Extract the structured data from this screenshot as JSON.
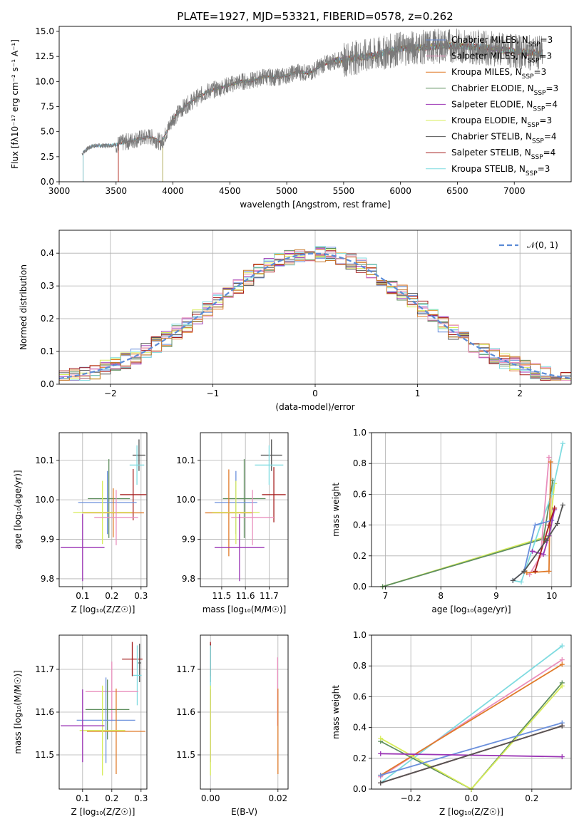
{
  "title": "PLATE=1927, MJD=53321, FIBERID=0578, z=0.262",
  "colors": [
    "#6a8fdc",
    "#e07b2a",
    "#5f8f5f",
    "#9b35b5",
    "#d7ec5a",
    "#555555",
    "#a51d1d",
    "#7fdbe0",
    "#e98fbd",
    "#c77a2f"
  ],
  "chart_data": [
    {
      "id": "spectrum",
      "type": "line",
      "title": "PLATE=1927, MJD=53321, FIBERID=0578, z=0.262",
      "xlabel": "wavelength [Angstrom, rest frame]",
      "ylabel": "Flux [fλ10⁻¹⁷ erg cm⁻² s⁻¹ A⁻¹]",
      "xlim": [
        3000,
        7500
      ],
      "ylim": [
        0,
        15.5
      ],
      "xticks": [
        "3000",
        "3500",
        "4000",
        "4500",
        "5000",
        "5500",
        "6000",
        "6500",
        "7000"
      ],
      "yticks": [
        "0.0",
        "2.5",
        "5.0",
        "7.5",
        "10.0",
        "12.5",
        "15.0"
      ],
      "legend_position": "top-right",
      "data_range": [
        3200,
        7250
      ],
      "continuum": {
        "x": [
          3200,
          3250,
          3300,
          3400,
          3500,
          3600,
          3700,
          3800,
          3900,
          3950,
          4000,
          4100,
          4200,
          4300,
          4400,
          4500,
          4600,
          4700,
          4800,
          4900,
          5000,
          5100,
          5200,
          5300,
          5400,
          5500,
          5600,
          5700,
          5800,
          5900,
          6000,
          6200,
          6400,
          6600,
          6800,
          7000,
          7250
        ],
        "y": [
          2.8,
          3.3,
          3.6,
          3.6,
          3.7,
          4.0,
          4.3,
          4.5,
          3.9,
          5.1,
          6.3,
          7.5,
          8.3,
          9.0,
          9.3,
          9.7,
          10.0,
          10.1,
          10.5,
          10.4,
          10.6,
          11.0,
          10.8,
          11.6,
          12.0,
          12.2,
          12.4,
          12.5,
          12.7,
          13.0,
          13.3,
          13.4,
          13.6,
          13.5,
          13.3,
          13.0,
          12.8
        ]
      },
      "series": [
        {
          "name": "Chabrier MILES, N_SSP=3",
          "color": "#6a8fdc",
          "start": 3210
        },
        {
          "name": "Salpeter MILES, N_SSP=3",
          "color": "#e98fbd",
          "start": 3520
        },
        {
          "name": "Kroupa MILES, N_SSP=3",
          "color": "#e07b2a",
          "start": 3520
        },
        {
          "name": "Chabrier ELODIE, N_SSP=3",
          "color": "#5f8f5f",
          "start": 3910
        },
        {
          "name": "Salpeter ELODIE, N_SSP=4",
          "color": "#9b35b5",
          "start": 3910
        },
        {
          "name": "Kroupa ELODIE, N_SSP=3",
          "color": "#d7ec5a",
          "start": 3910
        },
        {
          "name": "Chabrier STELIB, N_SSP=4",
          "color": "#555555",
          "start": 3210
        },
        {
          "name": "Salpeter STELIB, N_SSP=4",
          "color": "#a51d1d",
          "start": 3520
        },
        {
          "name": "Kroupa STELIB, N_SSP=3",
          "color": "#7fdbe0",
          "start": 3210
        }
      ]
    },
    {
      "id": "residuals",
      "type": "histogram",
      "xlabel": "(data-model)/error",
      "ylabel": "Normed distribution",
      "xlim": [
        -2.5,
        2.5
      ],
      "ylim": [
        0,
        0.47
      ],
      "xticks": [
        "−2",
        "−1",
        "0",
        "1",
        "2"
      ],
      "xtick_values": [
        -2,
        -1,
        0,
        1,
        2
      ],
      "yticks": [
        "0.0",
        "0.1",
        "0.2",
        "0.3",
        "0.4"
      ],
      "ytick_values": [
        0,
        0.1,
        0.2,
        0.3,
        0.4
      ],
      "bin_edges": [
        -2.5,
        -2.4,
        -2.3,
        -2.2,
        -2.1,
        -2.0,
        -1.9,
        -1.8,
        -1.7,
        -1.6,
        -1.5,
        -1.4,
        -1.3,
        -1.2,
        -1.1,
        -1.0,
        -0.9,
        -0.8,
        -0.7,
        -0.6,
        -0.5,
        -0.4,
        -0.3,
        -0.2,
        -0.1,
        0.0,
        0.1,
        0.2,
        0.3,
        0.4,
        0.5,
        0.6,
        0.7,
        0.8,
        0.9,
        1.0,
        1.1,
        1.2,
        1.3,
        1.4,
        1.5,
        1.6,
        1.7,
        1.8,
        1.9,
        2.0,
        2.1,
        2.2,
        2.3,
        2.4,
        2.5
      ],
      "gaussian_label": "𝒩(0, 1)",
      "legend_position": "top-right",
      "grid": true
    },
    {
      "id": "age-vs-Z",
      "type": "errorbar",
      "xlabel": "Z [log₁₀(Z/Z☉)]",
      "ylabel": "age  [log₁₀(age/yr)]",
      "xlim": [
        0.02,
        0.32
      ],
      "ylim": [
        9.78,
        10.17
      ],
      "xticks": [
        "0.1",
        "0.2",
        "0.3"
      ],
      "xtick_values": [
        0.1,
        0.2,
        0.3
      ],
      "yticks": [
        "9.8",
        "9.9",
        "10.0",
        "10.1"
      ],
      "ytick_values": [
        9.8,
        9.9,
        10.0,
        10.1
      ],
      "points": [
        {
          "x": 0.293,
          "xerr": 0.022,
          "y": 10.113,
          "yerr": 0.04,
          "color": "#555555"
        },
        {
          "x": 0.286,
          "xerr": 0.025,
          "y": 10.088,
          "yerr": 0.05,
          "color": "#7fdbe0"
        },
        {
          "x": 0.273,
          "xerr": 0.045,
          "y": 10.013,
          "yerr": 0.065,
          "color": "#a51d1d"
        },
        {
          "x": 0.19,
          "xerr": 0.072,
          "y": 10.003,
          "yerr": 0.1,
          "color": "#5f8f5f"
        },
        {
          "x": 0.185,
          "xerr": 0.1,
          "y": 9.993,
          "yerr": 0.08,
          "color": "#6a8fdc"
        },
        {
          "x": 0.205,
          "xerr": 0.105,
          "y": 9.967,
          "yerr": 0.062,
          "color": "#e07b2a"
        },
        {
          "x": 0.168,
          "xerr": 0.1,
          "y": 9.968,
          "yerr": 0.08,
          "color": "#d7ec5a"
        },
        {
          "x": 0.215,
          "xerr": 0.075,
          "y": 9.955,
          "yerr": 0.07,
          "color": "#e98fbd"
        },
        {
          "x": 0.1,
          "xerr": 0.075,
          "y": 9.879,
          "yerr": 0.085,
          "color": "#9b35b5"
        }
      ]
    },
    {
      "id": "age-vs-mass",
      "type": "errorbar",
      "xlabel": "mass [log₁₀(M/M☉)]",
      "ylabel": "",
      "xlim": [
        11.41,
        11.78
      ],
      "ylim": [
        9.78,
        10.17
      ],
      "xticks": [
        "11.5",
        "11.6",
        "11.7"
      ],
      "xtick_values": [
        11.5,
        11.6,
        11.7
      ],
      "yticks": [
        "9.8",
        "9.9",
        "10.0",
        "10.1"
      ],
      "ytick_values": [
        9.8,
        9.9,
        10.0,
        10.1
      ],
      "points": [
        {
          "x": 11.71,
          "xerr": 0.045,
          "y": 10.113,
          "yerr": 0.04,
          "color": "#555555"
        },
        {
          "x": 11.7,
          "xerr": 0.06,
          "y": 10.088,
          "yerr": 0.05,
          "color": "#7fdbe0"
        },
        {
          "x": 11.72,
          "xerr": 0.05,
          "y": 10.013,
          "yerr": 0.07,
          "color": "#a51d1d"
        },
        {
          "x": 11.595,
          "xerr": 0.09,
          "y": 10.003,
          "yerr": 0.1,
          "color": "#5f8f5f"
        },
        {
          "x": 11.56,
          "xerr": 0.09,
          "y": 9.993,
          "yerr": 0.08,
          "color": "#6a8fdc"
        },
        {
          "x": 11.53,
          "xerr": 0.1,
          "y": 9.967,
          "yerr": 0.11,
          "color": "#e07b2a"
        },
        {
          "x": 11.56,
          "xerr": 0.1,
          "y": 9.968,
          "yerr": 0.08,
          "color": "#d7ec5a"
        },
        {
          "x": 11.63,
          "xerr": 0.09,
          "y": 9.955,
          "yerr": 0.07,
          "color": "#e98fbd"
        },
        {
          "x": 11.575,
          "xerr": 0.105,
          "y": 9.879,
          "yerr": 0.085,
          "color": "#9b35b5"
        }
      ]
    },
    {
      "id": "weight-vs-age",
      "type": "line",
      "xlabel": "age  [log₁₀(age/yr)]",
      "ylabel": "mass weight",
      "xlim": [
        6.75,
        10.35
      ],
      "ylim": [
        0,
        1
      ],
      "xticks": [
        "7",
        "8",
        "9",
        "10"
      ],
      "xtick_values": [
        7,
        8,
        9,
        10
      ],
      "yticks": [
        "0.0",
        "0.2",
        "0.4",
        "0.6",
        "0.8",
        "1.0"
      ],
      "ytick_values": [
        0,
        0.2,
        0.4,
        0.6,
        0.8,
        1.0
      ],
      "series": [
        {
          "color": "#d7ec5a",
          "x": [
            6.95,
            9.95,
            10.05
          ],
          "y": [
            0.0,
            0.33,
            0.67
          ]
        },
        {
          "color": "#5f8f5f",
          "x": [
            6.95,
            9.85,
            10.02
          ],
          "y": [
            0.0,
            0.31,
            0.69
          ]
        },
        {
          "color": "#7fdbe0",
          "x": [
            9.3,
            9.45,
            9.8,
            10.0,
            10.2
          ],
          "y": [
            0.04,
            0.03,
            0.4,
            0.6,
            0.93
          ]
        },
        {
          "color": "#e98fbd",
          "x": [
            9.6,
            9.8,
            9.95
          ],
          "y": [
            0.08,
            0.2,
            0.84
          ]
        },
        {
          "color": "#e07b2a",
          "x": [
            9.55,
            9.95,
            9.98
          ],
          "y": [
            0.09,
            0.1,
            0.81
          ]
        },
        {
          "color": "#6a8fdc",
          "x": [
            9.3,
            9.5,
            9.7,
            10.0
          ],
          "y": [
            0.04,
            0.1,
            0.4,
            0.43
          ]
        },
        {
          "color": "#9b35b5",
          "x": [
            9.65,
            9.85,
            9.95,
            10.05
          ],
          "y": [
            0.23,
            0.21,
            0.33,
            0.5
          ]
        },
        {
          "color": "#a51d1d",
          "x": [
            9.7,
            9.95,
            10.05
          ],
          "y": [
            0.1,
            0.4,
            0.51
          ]
        },
        {
          "color": "#555555",
          "x": [
            9.3,
            9.5,
            9.9,
            10.1,
            10.2
          ],
          "y": [
            0.04,
            0.1,
            0.3,
            0.41,
            0.53
          ]
        }
      ]
    },
    {
      "id": "mass-vs-Z",
      "type": "errorbar",
      "xlabel": "Z [log₁₀(Z/Z☉)]",
      "ylabel": "mass [log₁₀(M/M☉)]",
      "xlim": [
        0.02,
        0.32
      ],
      "ylim": [
        11.42,
        11.78
      ],
      "xticks": [
        "0.1",
        "0.2",
        "0.3"
      ],
      "xtick_values": [
        0.1,
        0.2,
        0.3
      ],
      "yticks": [
        "11.5",
        "11.6",
        "11.7"
      ],
      "ytick_values": [
        11.5,
        11.6,
        11.7
      ],
      "points": [
        {
          "x": 0.295,
          "xerr": 0.005,
          "y": 11.715,
          "yerr": 0.045,
          "color": "#555555"
        },
        {
          "x": 0.27,
          "xerr": 0.035,
          "y": 11.724,
          "yerr": 0.04,
          "color": "#a51d1d"
        },
        {
          "x": 0.287,
          "xerr": 0.015,
          "y": 11.686,
          "yerr": 0.07,
          "color": "#7fdbe0"
        },
        {
          "x": 0.2,
          "xerr": 0.09,
          "y": 11.648,
          "yerr": 0.07,
          "color": "#e98fbd"
        },
        {
          "x": 0.185,
          "xerr": 0.075,
          "y": 11.606,
          "yerr": 0.07,
          "color": "#5f8f5f"
        },
        {
          "x": 0.18,
          "xerr": 0.1,
          "y": 11.581,
          "yerr": 0.1,
          "color": "#6a8fdc"
        },
        {
          "x": 0.215,
          "xerr": 0.1,
          "y": 11.555,
          "yerr": 0.1,
          "color": "#e07b2a"
        },
        {
          "x": 0.168,
          "xerr": 0.078,
          "y": 11.557,
          "yerr": 0.105,
          "color": "#d7ec5a"
        },
        {
          "x": 0.1,
          "xerr": 0.075,
          "y": 11.568,
          "yerr": 0.085,
          "color": "#9b35b5"
        }
      ]
    },
    {
      "id": "mass-vs-ebv",
      "type": "errorbar",
      "xlabel": "E(B-V)",
      "ylabel": "",
      "xlim": [
        -0.003,
        0.023
      ],
      "ylim": [
        11.42,
        11.78
      ],
      "xticks": [
        "0.00",
        "0.02"
      ],
      "xtick_values": [
        0,
        0.02
      ],
      "yticks": [
        "11.5",
        "11.6",
        "11.7"
      ],
      "ytick_values": [
        11.5,
        11.6,
        11.7
      ],
      "points": [
        {
          "x": 0.0,
          "xerr": 0,
          "y": 11.715,
          "yerr": 0.045,
          "color": "#555555"
        },
        {
          "x": 0.0,
          "xerr": 0,
          "y": 11.724,
          "yerr": 0.04,
          "color": "#a51d1d"
        },
        {
          "x": 0.0,
          "xerr": 0,
          "y": 11.686,
          "yerr": 0.07,
          "color": "#7fdbe0"
        },
        {
          "x": 0.0,
          "xerr": 0,
          "y": 11.568,
          "yerr": 0.085,
          "color": "#9b35b5"
        },
        {
          "x": 0.0,
          "xerr": 0,
          "y": 11.557,
          "yerr": 0.105,
          "color": "#d7ec5a"
        },
        {
          "x": 0.0199,
          "xerr": 0,
          "y": 11.648,
          "yerr": 0.08,
          "color": "#e98fbd"
        },
        {
          "x": 0.02,
          "xerr": 0,
          "y": 11.555,
          "yerr": 0.1,
          "color": "#e07b2a"
        }
      ]
    },
    {
      "id": "weight-vs-Z",
      "type": "line",
      "xlabel": "Z [log₁₀(Z/Z☉)]",
      "ylabel": "mass weight",
      "xlim": [
        -0.33,
        0.33
      ],
      "ylim": [
        0,
        1
      ],
      "xticks": [
        "−0.2",
        "0.0",
        "0.2"
      ],
      "xtick_values": [
        -0.2,
        0,
        0.2
      ],
      "yticks": [
        "0.0",
        "0.2",
        "0.4",
        "0.6",
        "0.8",
        "1.0"
      ],
      "ytick_values": [
        0,
        0.2,
        0.4,
        0.6,
        0.8,
        1.0
      ],
      "series": [
        {
          "color": "#7fdbe0",
          "x": [
            -0.3,
            0.3
          ],
          "y": [
            0.04,
            0.93
          ]
        },
        {
          "color": "#e98fbd",
          "x": [
            -0.3,
            0.3
          ],
          "y": [
            0.08,
            0.84
          ]
        },
        {
          "color": "#e07b2a",
          "x": [
            -0.3,
            0.3
          ],
          "y": [
            0.09,
            0.81
          ]
        },
        {
          "color": "#5f8f5f",
          "x": [
            -0.3,
            0.0,
            0.3
          ],
          "y": [
            0.31,
            0.0,
            0.69
          ]
        },
        {
          "color": "#d7ec5a",
          "x": [
            -0.3,
            0.0,
            0.3
          ],
          "y": [
            0.33,
            0.0,
            0.67
          ]
        },
        {
          "color": "#6a8fdc",
          "x": [
            -0.3,
            0.3
          ],
          "y": [
            0.09,
            0.43
          ]
        },
        {
          "color": "#9b35b5",
          "x": [
            -0.3,
            0.3
          ],
          "y": [
            0.23,
            0.21
          ]
        },
        {
          "color": "#a51d1d",
          "x": [
            -0.3,
            0.3
          ],
          "y": [
            0.04,
            0.41
          ]
        },
        {
          "color": "#555555",
          "x": [
            -0.3,
            0.3
          ],
          "y": [
            0.04,
            0.41
          ]
        }
      ]
    }
  ]
}
